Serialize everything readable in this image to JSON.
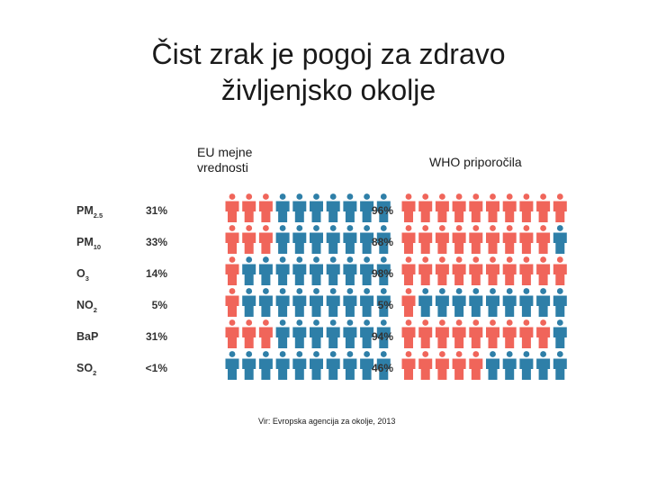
{
  "title_line1": "Čist zrak je pogoj za zdravo",
  "title_line2": "življenjsko okolje",
  "header_eu": "EU mejne vrednosti",
  "header_who": "WHO priporočila",
  "source": "Vir: Evropska agencija za okolje, 2013",
  "colors": {
    "exposed": "#f0655a",
    "not_exposed": "#2e7fa8",
    "label": "#333333"
  },
  "chart_data": {
    "type": "pictogram",
    "icons_per_row": 10,
    "rows": [
      {
        "pollutant": "PM",
        "subscript": "2.5",
        "eu_label": "31%",
        "eu_icons": 3,
        "who_label": "96%",
        "who_icons": 10
      },
      {
        "pollutant": "PM",
        "subscript": "10",
        "eu_label": "33%",
        "eu_icons": 3,
        "who_label": "88%",
        "who_icons": 9
      },
      {
        "pollutant": "O",
        "subscript": "3",
        "eu_label": "14%",
        "eu_icons": 1,
        "who_label": "98%",
        "who_icons": 10
      },
      {
        "pollutant": "NO",
        "subscript": "2",
        "eu_label": "5%",
        "eu_icons": 1,
        "who_label": "5%",
        "who_icons": 1
      },
      {
        "pollutant": "BaP",
        "subscript": "",
        "eu_label": "31%",
        "eu_icons": 3,
        "who_label": "94%",
        "who_icons": 9
      },
      {
        "pollutant": "SO",
        "subscript": "2",
        "eu_label": "<1%",
        "eu_icons": 0,
        "who_label": "46%",
        "who_icons": 5
      }
    ]
  }
}
